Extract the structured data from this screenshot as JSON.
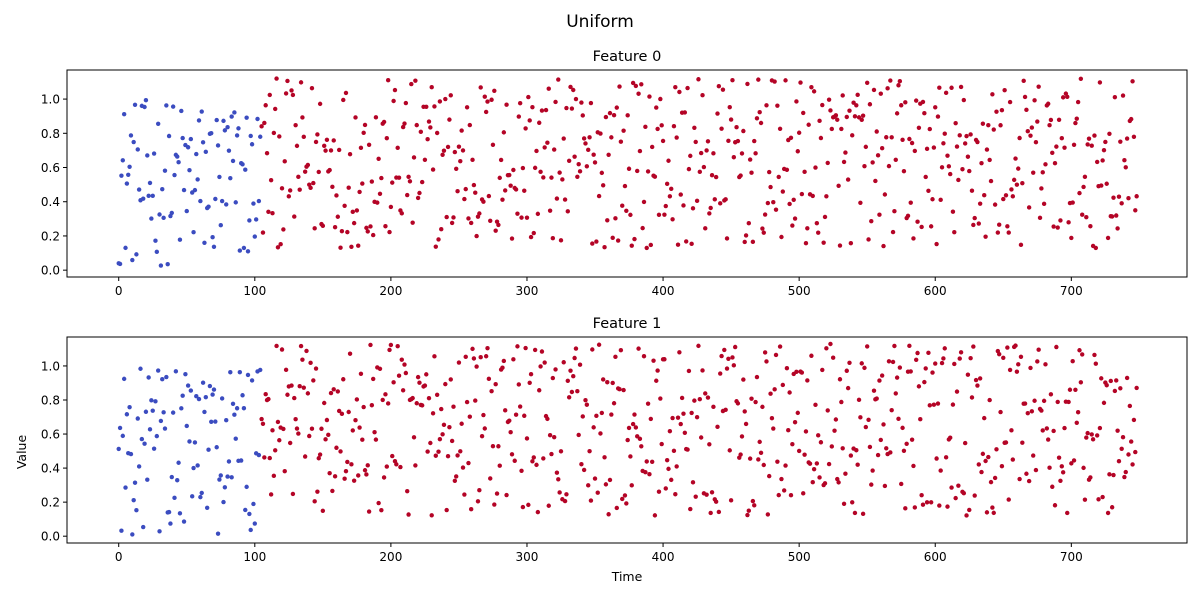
{
  "chart_data": [
    {
      "type": "scatter",
      "suptitle": "Uniform",
      "title": "Feature 0",
      "xlabel": "",
      "ylabel": "",
      "xlim": [
        -38,
        785
      ],
      "ylim": [
        -0.04,
        1.17
      ],
      "xticks": [
        0,
        100,
        200,
        300,
        400,
        500,
        600,
        700
      ],
      "yticks": [
        0.0,
        0.2,
        0.4,
        0.6,
        0.8,
        1.0
      ],
      "grid": false,
      "colors": {
        "low": "#3b4cc0",
        "high": "#b40426"
      },
      "segments": [
        {
          "x_range": [
            0,
            104
          ],
          "color": "#3b4cc0",
          "y_min": 0.02,
          "y_max": 1.0
        },
        {
          "x_range": [
            105,
            748
          ],
          "color": "#b40426",
          "y_min": 0.13,
          "y_max": 1.12
        }
      ]
    },
    {
      "type": "scatter",
      "title": "Feature 1",
      "xlabel": "Time",
      "ylabel": "Value",
      "xlim": [
        -38,
        785
      ],
      "ylim": [
        -0.04,
        1.17
      ],
      "xticks": [
        0,
        100,
        200,
        300,
        400,
        500,
        600,
        700
      ],
      "yticks": [
        0.0,
        0.2,
        0.4,
        0.6,
        0.8,
        1.0
      ],
      "grid": false,
      "colors": {
        "low": "#3b4cc0",
        "high": "#b40426"
      },
      "segments": [
        {
          "x_range": [
            0,
            104
          ],
          "color": "#3b4cc0",
          "y_min": 0.0,
          "y_max": 1.0
        },
        {
          "x_range": [
            105,
            748
          ],
          "color": "#b40426",
          "y_min": 0.12,
          "y_max": 1.13
        }
      ]
    }
  ]
}
